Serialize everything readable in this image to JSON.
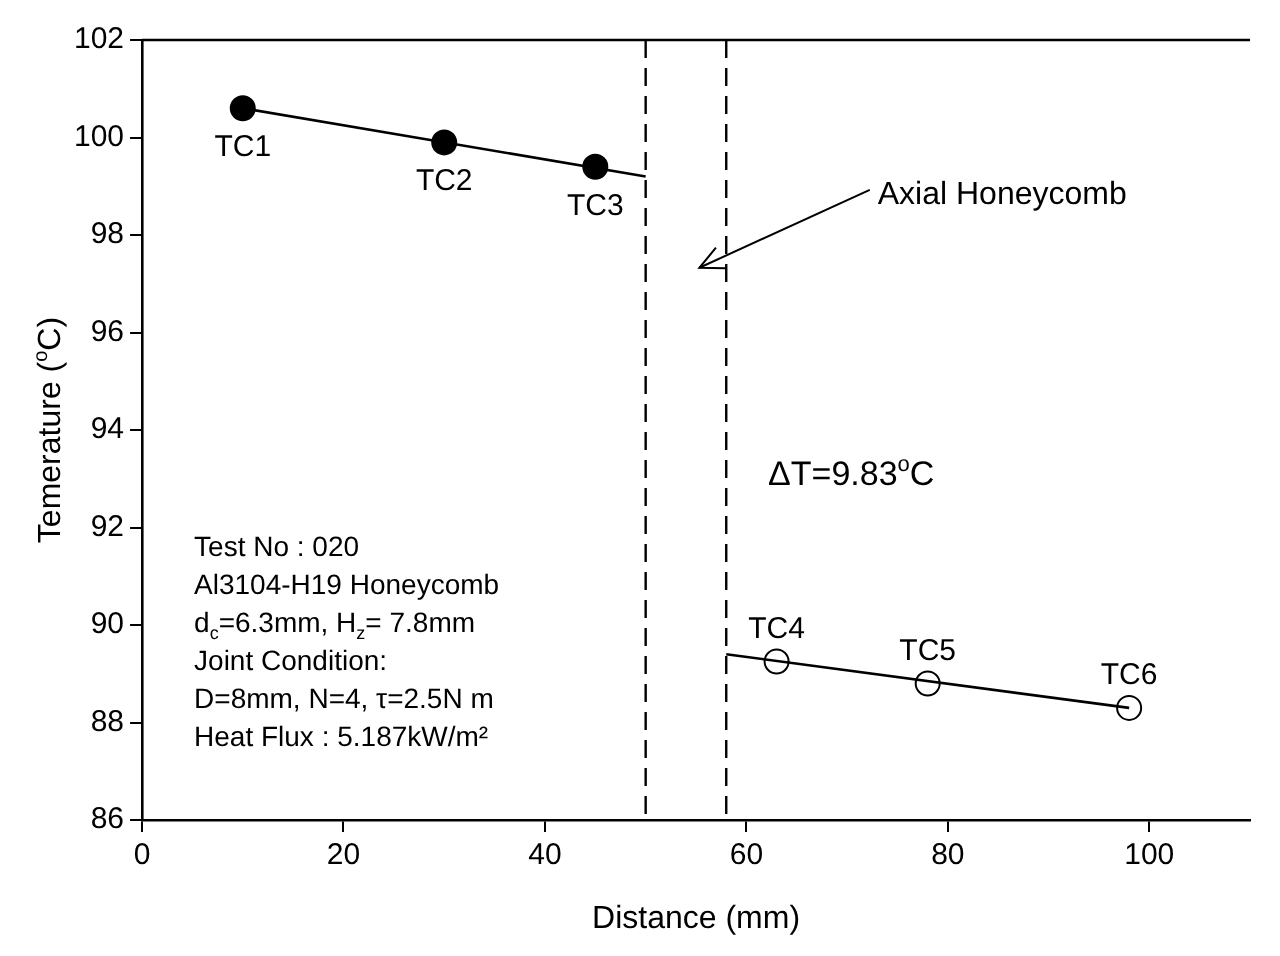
{
  "chart_data": {
    "type": "scatter",
    "xlabel": "Distance (mm)",
    "ylabel": "Temerature ($^{o}$C)",
    "xlim": [
      0,
      110
    ],
    "xticks": [
      0,
      20,
      40,
      60,
      80,
      100
    ],
    "ylim": [
      86,
      102
    ],
    "yticks": [
      86,
      88,
      90,
      92,
      94,
      96,
      98,
      100,
      102
    ],
    "grid": false,
    "legend": false,
    "marker": "circle",
    "series": [
      {
        "type": "line",
        "color": "#000000",
        "x": [
          10,
          50
        ],
        "values": [
          100.6,
          99.2
        ],
        "marker": "none"
      },
      {
        "type": "line",
        "color": "#000000",
        "x": [
          58,
          98
        ],
        "values": [
          89.4,
          88.3
        ],
        "marker": "none"
      },
      {
        "color": "#000000",
        "x": [
          10,
          30,
          45
        ],
        "values": [
          100.6,
          99.9,
          99.4
        ]
      },
      {
        "color": "#ffffff",
        "x": [
          63,
          78,
          98
        ],
        "values": [
          89.25,
          88.8,
          88.3
        ]
      }
    ],
    "ref_lines": [
      {
        "axis": "x",
        "value": 50,
        "line_style": "dashed",
        "color": "#000000"
      },
      {
        "axis": "x",
        "value": 58,
        "line_style": "dashed",
        "color": "#000000"
      }
    ],
    "annotations": [
      {
        "text": "TC1",
        "x": 10,
        "y": 100.6
      },
      {
        "text": "TC2",
        "x": 30,
        "y": 99.9
      },
      {
        "text": "TC3",
        "x": 45,
        "y": 99.4
      },
      {
        "text": "TC4",
        "x": 63,
        "y": 89.25
      },
      {
        "text": "TC5",
        "x": 78,
        "y": 88.8
      },
      {
        "text": "TC6",
        "x": 98,
        "y": 88.3
      },
      "Axial Honeycomb",
      "ΔT=9.83$^{o}$C",
      "Test No : 020",
      "Al3104-H19 Honeycomb",
      "d$_{c}$=6.3mm, H$_{z}$= 7.8mm",
      "Joint Condition:",
      "D=8mm, N=4, τ=2.5N m",
      "Heat Flux : 5.187kW/m²"
    ]
  }
}
